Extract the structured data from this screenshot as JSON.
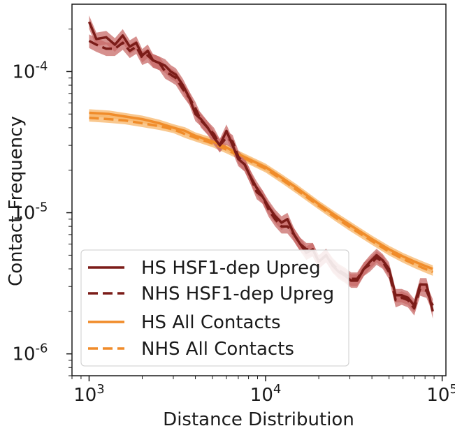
{
  "chart_data": {
    "type": "line",
    "xlabel": "Distance Distribution",
    "ylabel": "Contact Frequency",
    "xscale": "log",
    "yscale": "log",
    "xlim": [
      800,
      105000
    ],
    "ylim": [
      7e-07,
      0.0003
    ],
    "x_ticks": [
      {
        "value": 1000,
        "base": "10",
        "exp": "3"
      },
      {
        "value": 10000,
        "base": "10",
        "exp": "4"
      },
      {
        "value": 100000,
        "base": "10",
        "exp": "5"
      }
    ],
    "y_ticks": [
      {
        "value": 1e-06,
        "base": "10",
        "exp": "-6"
      },
      {
        "value": 1e-05,
        "base": "10",
        "exp": "-5"
      },
      {
        "value": 0.0001,
        "base": "10",
        "exp": "-4"
      }
    ],
    "grid": false,
    "legend_position": "lower-left",
    "series": [
      {
        "name": "HS HSF1-dep Upreg",
        "color": "#7b1c18",
        "style": "solid",
        "band_color": "#c86b68",
        "x": [
          1000,
          1100,
          1250,
          1400,
          1550,
          1700,
          1850,
          2000,
          2150,
          2300,
          2500,
          2700,
          2900,
          3100,
          3400,
          3700,
          4000,
          4300,
          4700,
          5100,
          5500,
          6000,
          6500,
          7000,
          7600,
          8200,
          8900,
          9600,
          10400,
          11300,
          12300,
          13300,
          14500,
          15700,
          17000,
          18500,
          20000,
          22000,
          24000,
          26000,
          28000,
          30500,
          33000,
          36000,
          39000,
          42500,
          46000,
          50000,
          54500,
          59000,
          64000,
          69500,
          75000,
          81500,
          88500
        ],
        "y": [
          0.000225,
          0.00017,
          0.000175,
          0.000155,
          0.00018,
          0.00015,
          0.00016,
          0.00013,
          0.00014,
          0.00012,
          0.000115,
          0.00011,
          0.0001,
          9.5e-05,
          8e-05,
          6.5e-05,
          5e-05,
          4.6e-05,
          4e-05,
          3.4e-05,
          3e-05,
          3.8e-05,
          3e-05,
          2.4e-05,
          2.2e-05,
          1.8e-05,
          1.5e-05,
          1.3e-05,
          1.1e-05,
          9.5e-06,
          8.5e-06,
          9e-06,
          7e-06,
          6e-06,
          5.2e-06,
          5.5e-06,
          4.5e-06,
          5e-06,
          4.2e-06,
          3.8e-06,
          3.6e-06,
          3.3e-06,
          3.3e-06,
          4e-06,
          4.5e-06,
          5e-06,
          4.6e-06,
          4e-06,
          2.6e-06,
          2.6e-06,
          2.5e-06,
          2.2e-06,
          3.1e-06,
          3.1e-06,
          2e-06
        ]
      },
      {
        "name": "NHS HSF1-dep Upreg",
        "color": "#7b1c18",
        "style": "dashed",
        "band_color": "#c86b68",
        "x": [
          1000,
          1100,
          1250,
          1400,
          1550,
          1700,
          1850,
          2000,
          2150,
          2300,
          2500,
          2700,
          2900,
          3100,
          3400,
          3700,
          4000,
          4300,
          4700,
          5100,
          5500,
          6000,
          6500,
          7000,
          7600,
          8200,
          8900,
          9600,
          10400,
          11300,
          12300,
          13300,
          14500,
          15700,
          17000,
          18500,
          20000,
          22000,
          24000,
          26000,
          28000,
          30500,
          33000,
          36000,
          39000,
          42500,
          46000,
          50000,
          54500,
          59000,
          64000,
          69500,
          75000,
          81500,
          88500
        ],
        "y": [
          0.000165,
          0.000155,
          0.000145,
          0.000145,
          0.00016,
          0.00014,
          0.00015,
          0.000125,
          0.00013,
          0.00012,
          0.000115,
          0.0001,
          9.5e-05,
          9e-05,
          7.5e-05,
          6.5e-05,
          5.5e-05,
          4.5e-05,
          4e-05,
          3.6e-05,
          3e-05,
          3.4e-05,
          3.2e-05,
          2.5e-05,
          2.2e-05,
          1.8e-05,
          1.4e-05,
          1.3e-05,
          1.05e-05,
          9e-06,
          8e-06,
          8e-06,
          7e-06,
          6e-06,
          5.5e-06,
          5.5e-06,
          4.5e-06,
          5e-06,
          4.3e-06,
          3.9e-06,
          3.7e-06,
          3.4e-06,
          3.4e-06,
          4e-06,
          4.3e-06,
          4.8e-06,
          4.5e-06,
          3.8e-06,
          2.4e-06,
          2.5e-06,
          2.4e-06,
          2.1e-06,
          2.9e-06,
          2.8e-06,
          2.2e-06
        ]
      },
      {
        "name": "HS All Contacts",
        "color": "#f08c2a",
        "style": "solid",
        "band_color": "#f7b56a",
        "x": [
          1000,
          1300,
          1600,
          2000,
          2500,
          3000,
          3500,
          4000,
          5000,
          6000,
          7000,
          8000,
          10000,
          12500,
          15000,
          20000,
          25000,
          30000,
          40000,
          50000,
          60000,
          70000,
          80000,
          88500
        ],
        "y": [
          5.1e-05,
          5e-05,
          4.8e-05,
          4.6e-05,
          4.3e-05,
          4e-05,
          3.8e-05,
          3.5e-05,
          3.2e-05,
          2.9e-05,
          2.6e-05,
          2.4e-05,
          2.1e-05,
          1.75e-05,
          1.5e-05,
          1.15e-05,
          9.5e-06,
          8.2e-06,
          6.5e-06,
          5.5e-06,
          4.9e-06,
          4.5e-06,
          4.2e-06,
          4e-06
        ]
      },
      {
        "name": "NHS All Contacts",
        "color": "#f08c2a",
        "style": "dashed",
        "band_color": "#f7b56a",
        "x": [
          1000,
          1300,
          1600,
          2000,
          2500,
          3000,
          3500,
          4000,
          5000,
          6000,
          7000,
          8000,
          10000,
          12500,
          15000,
          20000,
          25000,
          30000,
          40000,
          50000,
          60000,
          70000,
          80000,
          88500
        ],
        "y": [
          4.7e-05,
          4.6e-05,
          4.5e-05,
          4.3e-05,
          4.1e-05,
          3.9e-05,
          3.6e-05,
          3.4e-05,
          3.1e-05,
          2.8e-05,
          2.55e-05,
          2.35e-05,
          2.05e-05,
          1.7e-05,
          1.45e-05,
          1.12e-05,
          9.2e-06,
          7.9e-06,
          6.3e-06,
          5.3e-06,
          4.7e-06,
          4.3e-06,
          4e-06,
          3.8e-06
        ]
      }
    ]
  }
}
